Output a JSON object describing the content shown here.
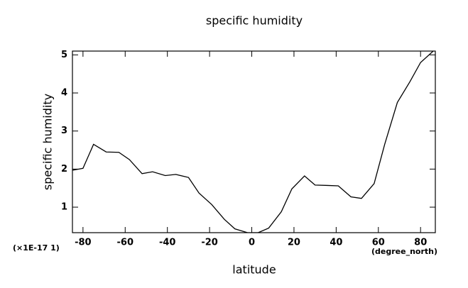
{
  "chart_data": {
    "type": "line",
    "title": "specific humidity",
    "x_label": "latitude",
    "y_label": "specific humidity",
    "y_scale_note": "(×1E-17 1)",
    "x_unit": "(degree_north)",
    "x": [
      -85,
      -80,
      -75,
      -69,
      -63,
      -58,
      -52,
      -47,
      -41,
      -36,
      -30,
      -25,
      -19,
      -13,
      -8,
      -2,
      3,
      8,
      14,
      19,
      25,
      30,
      36,
      41,
      47,
      52,
      58,
      63,
      69,
      75,
      80,
      86
    ],
    "series": [
      {
        "name": "specific humidity",
        "color": "#000000",
        "values": [
          1.97,
          2.02,
          2.65,
          2.45,
          2.44,
          2.25,
          1.88,
          1.93,
          1.83,
          1.86,
          1.78,
          1.37,
          1.07,
          0.68,
          0.43,
          0.33,
          0.33,
          0.45,
          0.88,
          1.48,
          1.82,
          1.58,
          1.57,
          1.56,
          1.27,
          1.23,
          1.62,
          2.65,
          3.75,
          4.3,
          4.8,
          5.1
        ]
      }
    ],
    "xlim": [
      -85,
      87
    ],
    "ylim": [
      0.33,
      5.1
    ],
    "xticks": [
      -80,
      -60,
      -40,
      -20,
      0,
      20,
      40,
      60,
      80
    ],
    "yticks": [
      1,
      2,
      3,
      4,
      5
    ]
  }
}
